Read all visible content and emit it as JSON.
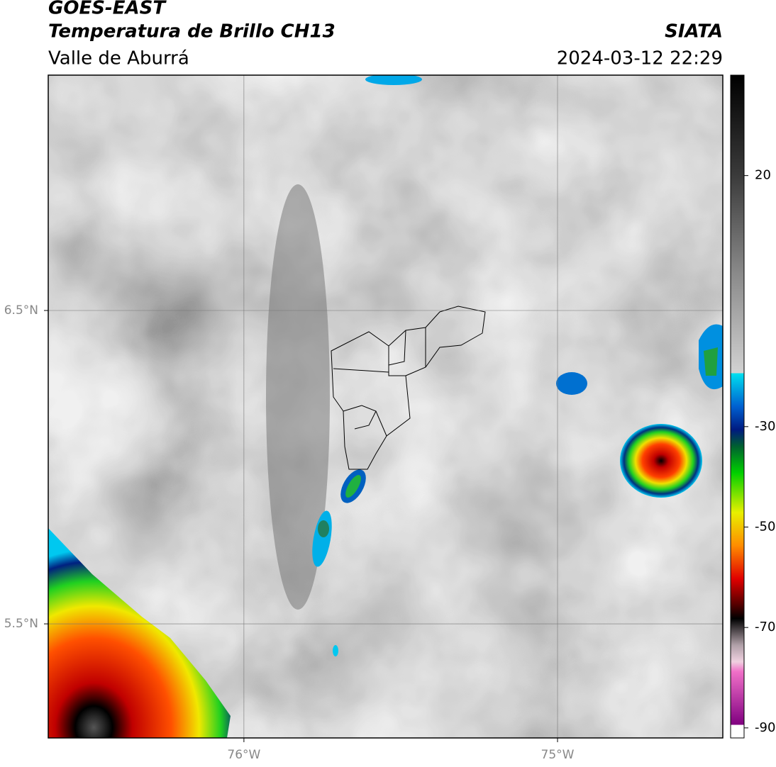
{
  "header": {
    "title": "GOES-EAST",
    "subtitle": "Temperatura de Brillo CH13",
    "region": "Valle de Aburrá",
    "source": "SIATA",
    "timestamp": "2024-03-12 22:29"
  },
  "map": {
    "xlim": [
      -76.624,
      -74.473
    ],
    "ylim": [
      5.136,
      7.251
    ],
    "xticks": [
      {
        "value": -76,
        "label": "76°W"
      },
      {
        "value": -75,
        "label": "75°W"
      }
    ],
    "yticks": [
      {
        "value": 6.5,
        "label": "6.5°N"
      },
      {
        "value": 5.5,
        "label": "5.5°N"
      }
    ],
    "grid": true
  },
  "colorbar": {
    "lim": [
      40,
      -92
    ],
    "ticks": [
      20,
      -30,
      -50,
      -70,
      -90
    ]
  }
}
